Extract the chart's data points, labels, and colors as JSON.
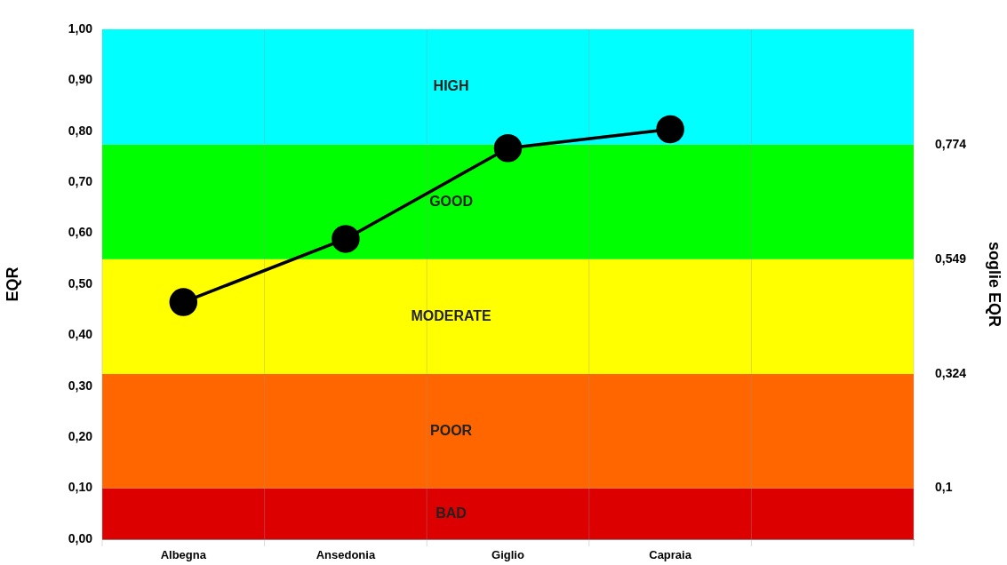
{
  "chart_data": {
    "type": "line",
    "categories": [
      "Albegna",
      "Ansedonia",
      "Giglio",
      "Capraia",
      null
    ],
    "series": [
      {
        "color": "#000000",
        "values": [
          0.465,
          0.589,
          0.767,
          0.804,
          null
        ]
      }
    ],
    "ylabel": "EQR",
    "y2label": "soglie EQR",
    "ylim": [
      0,
      1
    ],
    "yticks": [
      {
        "value": 0,
        "label": "0,00"
      },
      {
        "value": 0.1,
        "label": "0,10"
      },
      {
        "value": 0.2,
        "label": "0,20"
      },
      {
        "value": 0.3,
        "label": "0,30"
      },
      {
        "value": 0.4,
        "label": "0,40"
      },
      {
        "value": 0.5,
        "label": "0,50"
      },
      {
        "value": 0.6,
        "label": "0,60"
      },
      {
        "value": 0.7,
        "label": "0,70"
      },
      {
        "value": 0.8,
        "label": "0,80"
      },
      {
        "value": 0.9,
        "label": "0,90"
      },
      {
        "value": 1,
        "label": "1,00"
      }
    ],
    "y2lim": [
      0,
      1
    ],
    "y2ticks": [
      {
        "value": 0.1,
        "label": "0,1"
      },
      {
        "value": 0.324,
        "label": "0,324"
      },
      {
        "value": 0.549,
        "label": "0,549"
      },
      {
        "value": 0.774,
        "label": "0,774"
      }
    ],
    "bands": [
      {
        "axis": "y",
        "from": 0,
        "to": 0.1,
        "label": "BAD",
        "color": "#dd0000"
      },
      {
        "axis": "y",
        "from": 0.1,
        "to": 0.324,
        "label": "POOR",
        "color": "#ff6600"
      },
      {
        "axis": "y",
        "from": 0.324,
        "to": 0.549,
        "label": "MODERATE",
        "color": "#ffff00"
      },
      {
        "axis": "y",
        "from": 0.549,
        "to": 0.774,
        "label": "GOOD",
        "color": "#00ff00"
      },
      {
        "axis": "y",
        "from": 0.774,
        "to": 1,
        "label": "HIGH",
        "color": "#00ffff"
      }
    ],
    "grid": "x",
    "legend": false,
    "marker": "circle",
    "line_style": "solid"
  }
}
